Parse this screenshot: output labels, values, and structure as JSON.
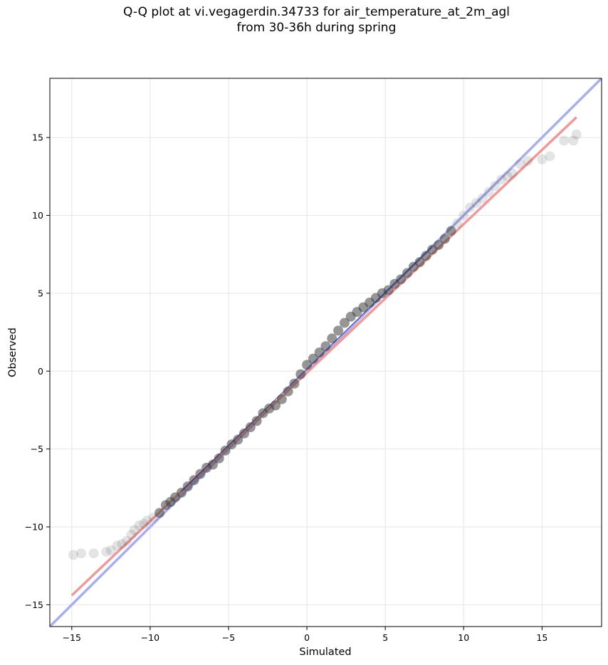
{
  "chart_data": {
    "type": "scatter",
    "title": "Q-Q plot at vi.vegagerdin.34733 for air_temperature_at_2m_agl",
    "subtitle": "from 30-36h during spring",
    "xlabel": "Simulated",
    "ylabel": "Observed",
    "xlim": [
      -16.4,
      18.8
    ],
    "ylim": [
      -16.4,
      18.8
    ],
    "x_ticks": [
      -15,
      -10,
      -5,
      0,
      5,
      10,
      15
    ],
    "y_ticks": [
      -15,
      -10,
      -5,
      0,
      5,
      10,
      15
    ],
    "x_tick_labels": [
      "−15",
      "−10",
      "−5",
      "0",
      "5",
      "10",
      "15"
    ],
    "y_tick_labels": [
      "−15",
      "−10",
      "−5",
      "0",
      "5",
      "10",
      "15"
    ],
    "grid": true,
    "series": [
      {
        "role": "quantiles",
        "color": "#404040",
        "x": [
          -14.9,
          -14.4,
          -13.6,
          -12.8,
          -12.5,
          -12.1,
          -11.8,
          -11.5,
          -11.2,
          -11.0,
          -10.7,
          -10.4,
          -10.2,
          -9.8,
          -9.4,
          -9.0,
          -8.7,
          -8.4,
          -8.0,
          -7.6,
          -7.2,
          -6.8,
          -6.4,
          -6.0,
          -5.6,
          -5.2,
          -4.8,
          -4.4,
          -4.0,
          -3.6,
          -3.2,
          -2.8,
          -2.4,
          -2.0,
          -1.6,
          -1.2,
          -0.8,
          -0.4,
          0.0,
          0.4,
          0.8,
          1.2,
          1.6,
          2.0,
          2.4,
          2.8,
          3.2,
          3.6,
          4.0,
          4.4,
          4.8,
          5.2,
          5.6,
          6.0,
          6.4,
          6.8,
          7.2,
          7.6,
          8.0,
          8.4,
          8.8,
          9.2,
          9.6,
          10.0,
          10.4,
          10.8,
          11.2,
          11.6,
          12.0,
          12.4,
          12.8,
          13.1,
          13.6,
          14.1,
          15.0,
          15.5,
          16.4,
          17.0,
          17.2
        ],
        "y": [
          -11.8,
          -11.7,
          -11.7,
          -11.6,
          -11.5,
          -11.2,
          -11.1,
          -10.9,
          -10.5,
          -10.2,
          -9.9,
          -9.8,
          -9.6,
          -9.4,
          -9.1,
          -8.6,
          -8.4,
          -8.1,
          -7.8,
          -7.4,
          -7.0,
          -6.6,
          -6.2,
          -6.0,
          -5.6,
          -5.1,
          -4.7,
          -4.4,
          -4.0,
          -3.6,
          -3.2,
          -2.7,
          -2.4,
          -2.2,
          -1.8,
          -1.3,
          -0.8,
          -0.2,
          0.4,
          0.8,
          1.2,
          1.6,
          2.1,
          2.6,
          3.1,
          3.5,
          3.8,
          4.1,
          4.4,
          4.7,
          5.0,
          5.2,
          5.6,
          5.9,
          6.3,
          6.7,
          7.0,
          7.4,
          7.8,
          8.1,
          8.5,
          9.0,
          9.5,
          10.0,
          10.5,
          10.8,
          11.1,
          11.5,
          11.9,
          12.3,
          12.5,
          12.7,
          13.3,
          13.5,
          13.6,
          13.8,
          14.8,
          14.8,
          15.2
        ]
      },
      {
        "role": "regression-fit",
        "color": "#ef9a9a",
        "x": [
          -15.0,
          17.2
        ],
        "y": [
          -14.4,
          16.3
        ]
      },
      {
        "role": "identity-line",
        "color": "#a8aef0",
        "x": [
          -16.4,
          18.8
        ],
        "y": [
          -16.4,
          18.8
        ]
      }
    ]
  }
}
